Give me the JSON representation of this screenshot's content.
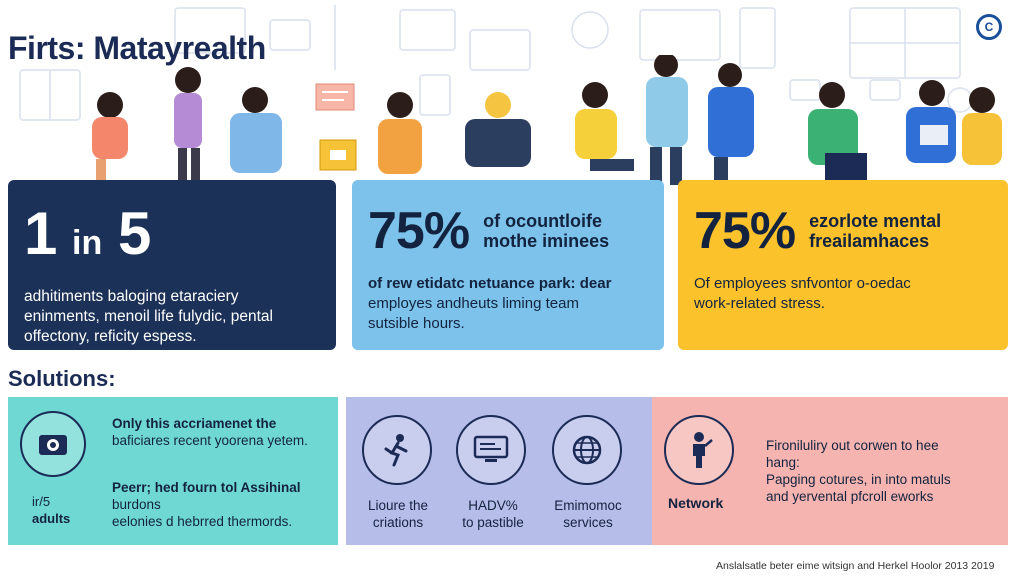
{
  "header": {
    "title": "Firts: Matayrealth",
    "logo_glyph": "C"
  },
  "stats": [
    {
      "big": "1",
      "big_in": "in",
      "big_tail": "5",
      "lines": [
        "adhitiments baloging etaraciery",
        "eninments, menoil life fulydic, pental",
        "offectony, reficity espess."
      ]
    },
    {
      "big": "75%",
      "sub_lines": [
        "of ocountloife",
        "mothe iminees"
      ],
      "lines": [
        "of rew etidatc netuance park: dear",
        "employes andheuts liming team",
        "sutsible hours."
      ]
    },
    {
      "big": "75%",
      "sub_lines": [
        "ezorlote mental",
        "freailamhaces"
      ],
      "lines": [
        "Of employees snfvontor o-oedac",
        "work-related stress."
      ]
    }
  ],
  "solutions": {
    "heading": "Solutions:",
    "card1": {
      "icon": "camera-icon",
      "icon_label_1": "ir/5",
      "icon_label_2": "adults",
      "top_lines": [
        "Only this accriamenet the",
        "baficiares recent yoorena yetem."
      ],
      "bottom_lines": [
        "Peerr; hed fourn tol Assihinal",
        "burdons",
        "eelonies d hebrred thermords."
      ]
    },
    "card2": {
      "items": [
        {
          "icon": "running-person-icon",
          "label_1": "Lioure the",
          "label_2": "criations"
        },
        {
          "icon": "monitor-icon",
          "label_1": "HADV%",
          "label_2": "to pastible"
        },
        {
          "icon": "globe-icon",
          "label_1": "Emimomoc",
          "label_2": "services"
        }
      ]
    },
    "card3": {
      "icon": "person-icon",
      "icon_label": "Network",
      "lines": [
        "Fironiluliry out corwen to hee",
        "hang:",
        "Papging cotures, in into matuls",
        "and yervental pfcroll eworks"
      ]
    }
  },
  "footnote": "Anslalsatle beter eime witsign and Herkel Hoolor 2013 2019",
  "colors": {
    "navy": "#1b3158",
    "sky": "#7cc2ea",
    "yellow": "#fbc22c",
    "teal": "#6fd8d3",
    "lavender": "#b7bde9",
    "salmon": "#f5b4b0"
  }
}
